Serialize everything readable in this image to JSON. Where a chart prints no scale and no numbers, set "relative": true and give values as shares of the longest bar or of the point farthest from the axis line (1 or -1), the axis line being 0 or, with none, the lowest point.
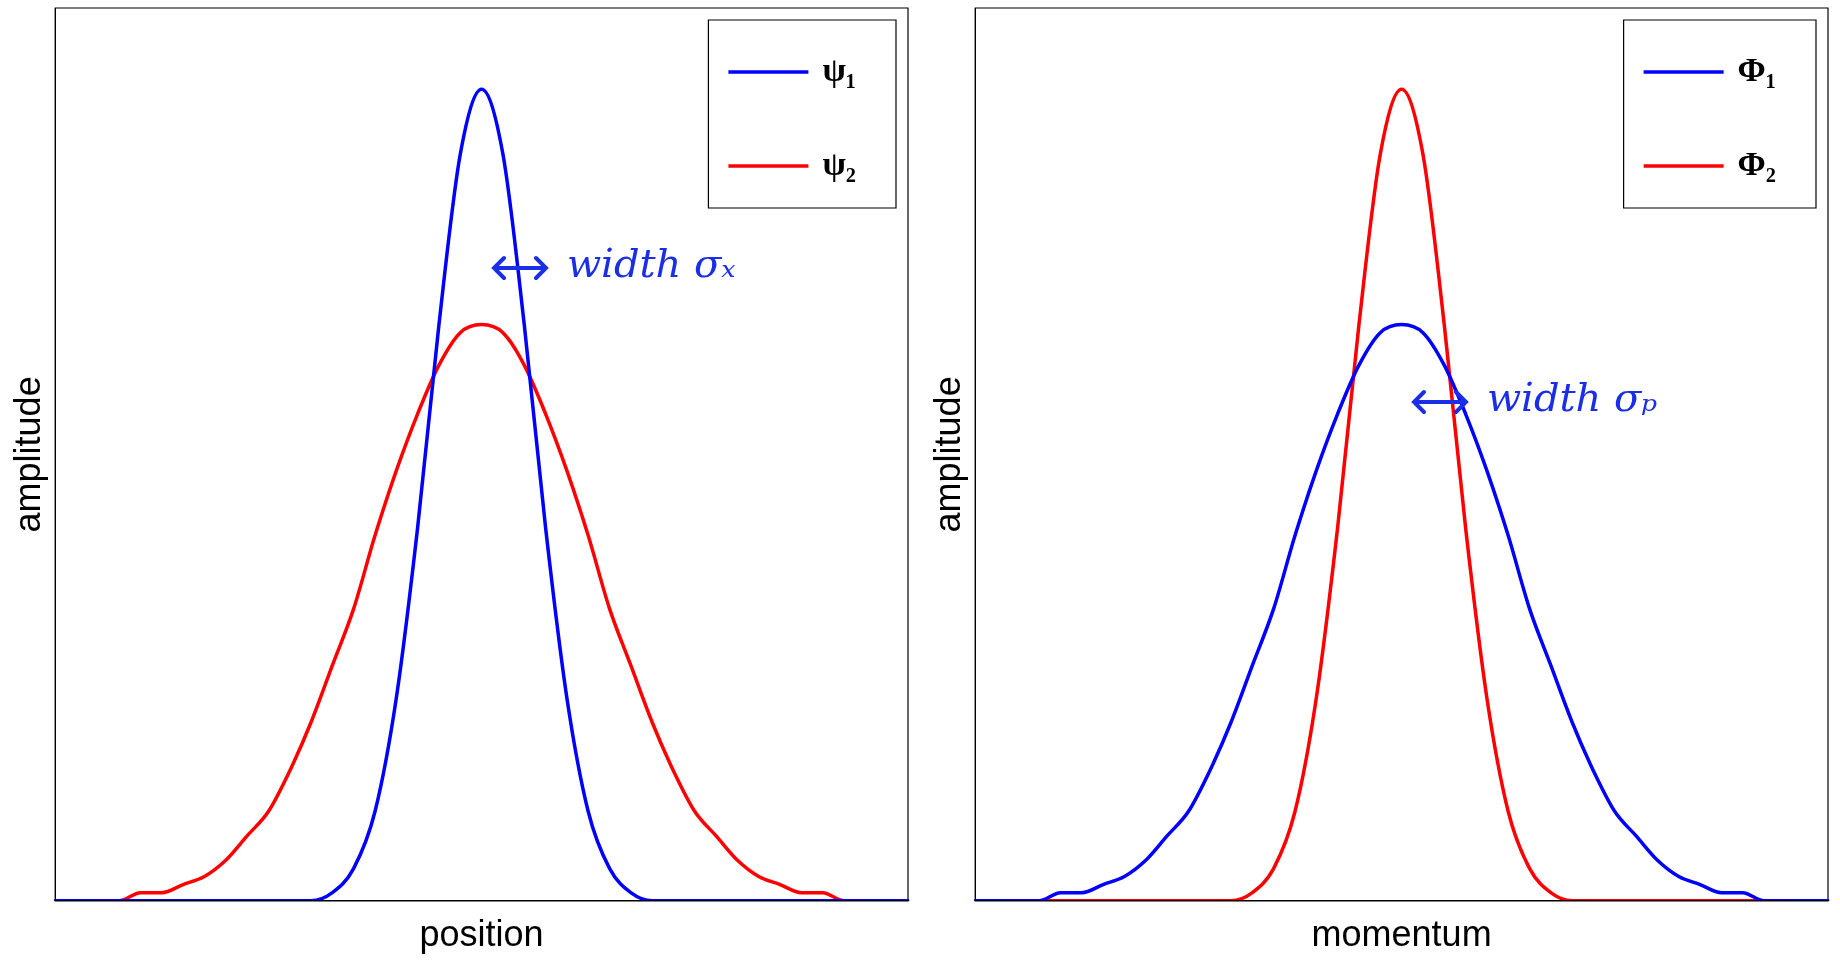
{
  "chart_data": [
    {
      "type": "line",
      "relative": true,
      "xlabel": "position",
      "ylabel": "amplitude",
      "legend": "top right",
      "grid": false,
      "marker": "none",
      "line_style": "solid",
      "tick_labels": false,
      "categories": [
        null,
        null,
        null,
        null,
        null,
        null,
        null,
        null,
        null,
        null,
        null,
        null,
        null,
        null,
        null,
        null,
        null,
        null,
        null,
        null,
        null,
        null,
        null,
        null,
        null,
        null,
        null,
        null,
        null,
        null,
        null,
        null,
        null,
        null,
        null,
        null,
        null,
        null,
        null,
        null,
        null
      ],
      "series": [
        {
          "name": "ψ₁",
          "color": "#0000ff",
          "values": [
            0,
            0,
            0,
            0,
            0,
            0,
            0,
            0,
            0,
            0,
            0,
            0,
            0,
            0.01,
            0.04,
            0.11,
            0.25,
            0.46,
            0.71,
            0.92,
            1,
            0.92,
            0.71,
            0.46,
            0.25,
            0.11,
            0.04,
            0.01,
            0,
            0,
            0,
            0,
            0,
            0,
            0,
            0,
            0,
            0,
            0,
            0,
            0
          ]
        },
        {
          "name": "ψ₂",
          "color": "#ff0000",
          "values": [
            null,
            null,
            0,
            0,
            0.01,
            0.01,
            0.02,
            0.03,
            0.05,
            0.08,
            0.11,
            0.16,
            0.22,
            0.29,
            0.36,
            0.45,
            0.53,
            0.6,
            0.66,
            0.7,
            0.71,
            0.7,
            0.66,
            0.6,
            0.53,
            0.45,
            0.36,
            0.29,
            0.22,
            0.16,
            0.11,
            0.08,
            0.05,
            0.03,
            0.02,
            0.01,
            0.01,
            0,
            0,
            null,
            null
          ]
        }
      ],
      "annotations": [
        "width σₓ"
      ]
    },
    {
      "type": "line",
      "relative": true,
      "xlabel": "momentum",
      "ylabel": "amplitude",
      "legend": "top right",
      "grid": false,
      "marker": "none",
      "line_style": "solid",
      "tick_labels": false,
      "categories": [
        null,
        null,
        null,
        null,
        null,
        null,
        null,
        null,
        null,
        null,
        null,
        null,
        null,
        null,
        null,
        null,
        null,
        null,
        null,
        null,
        null,
        null,
        null,
        null,
        null,
        null,
        null,
        null,
        null,
        null,
        null,
        null,
        null,
        null,
        null,
        null,
        null,
        null,
        null,
        null,
        null
      ],
      "series": [
        {
          "name": "Φ₁",
          "color": "#0000ff",
          "values": [
            0,
            0,
            0,
            0,
            0.01,
            0.01,
            0.02,
            0.03,
            0.05,
            0.08,
            0.11,
            0.16,
            0.22,
            0.29,
            0.36,
            0.45,
            0.53,
            0.6,
            0.66,
            0.7,
            0.71,
            0.7,
            0.66,
            0.6,
            0.53,
            0.45,
            0.36,
            0.29,
            0.22,
            0.16,
            0.11,
            0.08,
            0.05,
            0.03,
            0.02,
            0.01,
            0.01,
            0,
            0,
            0,
            0
          ]
        },
        {
          "name": "Φ₂",
          "color": "#ff0000",
          "values": [
            null,
            null,
            0,
            0,
            0,
            0,
            0,
            0,
            0,
            0,
            0,
            0,
            0,
            0.01,
            0.04,
            0.11,
            0.25,
            0.46,
            0.71,
            0.92,
            1,
            0.92,
            0.71,
            0.46,
            0.25,
            0.11,
            0.04,
            0.01,
            0,
            0,
            0,
            0,
            0,
            0,
            0,
            0,
            0,
            0,
            0,
            null,
            null
          ]
        }
      ],
      "annotations": [
        "width σₚ"
      ]
    }
  ]
}
